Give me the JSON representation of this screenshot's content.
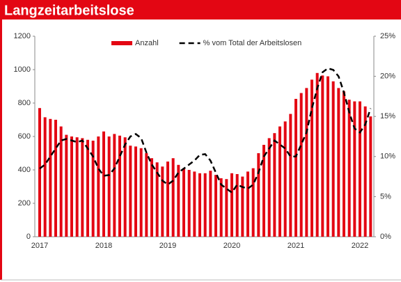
{
  "chart_data": {
    "type": "bar",
    "title": "Langzeitarbeitslose",
    "categories": [
      "2017",
      null,
      null,
      null,
      null,
      null,
      null,
      null,
      null,
      null,
      null,
      null,
      "2018",
      null,
      null,
      null,
      null,
      null,
      null,
      null,
      null,
      null,
      null,
      null,
      "2019",
      null,
      null,
      null,
      null,
      null,
      null,
      null,
      null,
      null,
      null,
      null,
      "2020",
      null,
      null,
      null,
      null,
      null,
      null,
      null,
      null,
      null,
      null,
      null,
      "2021",
      null,
      null,
      null,
      null,
      null,
      null,
      null,
      null,
      null,
      null,
      null,
      "2022",
      null,
      null
    ],
    "series": [
      {
        "name": "Anzahl",
        "type": "bar",
        "color": "#e30613",
        "values": [
          770,
          715,
          705,
          700,
          660,
          610,
          600,
          595,
          590,
          580,
          575,
          600,
          630,
          600,
          615,
          605,
          595,
          545,
          540,
          530,
          500,
          470,
          445,
          420,
          450,
          470,
          430,
          410,
          400,
          390,
          380,
          380,
          395,
          370,
          350,
          345,
          380,
          375,
          360,
          390,
          410,
          500,
          550,
          590,
          620,
          660,
          690,
          735,
          825,
          860,
          890,
          940,
          980,
          965,
          960,
          930,
          890,
          870,
          820,
          810,
          810,
          780,
          720
        ]
      },
      {
        "name": "% vom Total der Arbeitslosen",
        "type": "line",
        "axis": "y2",
        "color": "#000000",
        "dashed": true,
        "values": [
          8.5,
          9,
          10,
          11,
          12,
          12.2,
          12,
          11.8,
          12,
          11,
          10,
          8.5,
          7.6,
          7.7,
          8.5,
          10,
          11.5,
          12.5,
          12.8,
          12.3,
          10.5,
          9,
          8,
          7,
          6.5,
          7,
          8,
          8.5,
          9,
          9.5,
          10.2,
          10.3,
          9.5,
          8,
          6.5,
          6,
          5.5,
          6.5,
          6.2,
          6,
          6.5,
          8,
          10,
          11,
          12,
          11.5,
          11,
          10,
          10,
          11.5,
          13,
          16,
          18.5,
          20.5,
          21,
          20.8,
          20,
          18,
          15.5,
          13.5,
          13,
          14,
          16
        ]
      }
    ],
    "ylim": [
      0,
      1200
    ],
    "yticks": [
      0,
      200,
      400,
      600,
      800,
      1000,
      1200
    ],
    "y2lim": [
      0,
      25
    ],
    "y2ticks": [
      {
        "value": 0,
        "label": "0%"
      },
      {
        "value": 5,
        "label": "5%"
      },
      {
        "value": 10,
        "label": "10%"
      },
      {
        "value": 15,
        "label": "15%"
      },
      {
        "value": 20,
        "label": "20%"
      },
      {
        "value": 25,
        "label": "25%"
      }
    ],
    "legend": "top",
    "grid": false
  }
}
